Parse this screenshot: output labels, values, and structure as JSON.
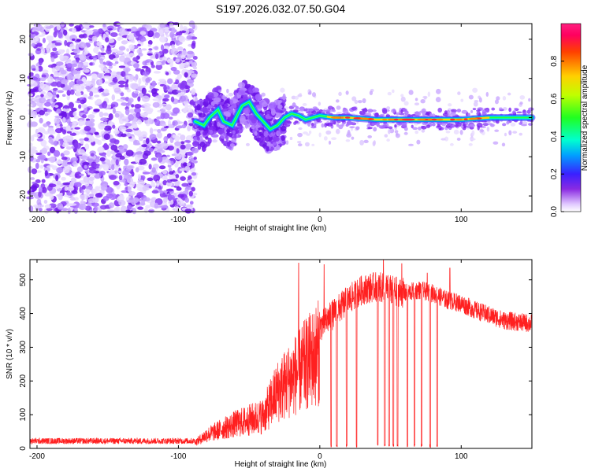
{
  "title": "S197.2026.032.07.50.G04",
  "chart_data": [
    {
      "type": "heatmap",
      "xlabel": "Height of straight line (km)",
      "ylabel": "Frequency (Hz)",
      "xlim": [
        -205,
        150
      ],
      "ylim": [
        -24,
        24
      ],
      "xticks": [
        -200,
        -100,
        0,
        100
      ],
      "yticks": [
        -20,
        -10,
        0,
        10,
        20
      ],
      "colorbar": {
        "label": "Normalized spectral amplitude",
        "range": [
          0,
          1
        ],
        "ticks": [
          "0.0",
          "0.2",
          "0.4",
          "0.6",
          "0.8"
        ],
        "tick_values": [
          0.0,
          0.2,
          0.4,
          0.6,
          0.8
        ]
      },
      "regions": [
        {
          "x_range": [
            -205,
            -88
          ],
          "description": "broadband noise",
          "amplitude": 0.05
        },
        {
          "x_range": [
            -88,
            -25
          ],
          "description": "scattered signal near 0 Hz",
          "amplitude": 0.2
        },
        {
          "x_range": [
            -25,
            150
          ],
          "description": "steady carrier at about 0 Hz",
          "amplitude": 0.9
        }
      ],
      "trace": [
        [
          -88,
          -1
        ],
        [
          -82,
          -2
        ],
        [
          -78,
          0
        ],
        [
          -72,
          2
        ],
        [
          -68,
          -1
        ],
        [
          -62,
          -2
        ],
        [
          -55,
          3
        ],
        [
          -50,
          4
        ],
        [
          -45,
          1
        ],
        [
          -40,
          -1
        ],
        [
          -35,
          -3
        ],
        [
          -30,
          -2
        ],
        [
          -25,
          0
        ],
        [
          -20,
          1
        ],
        [
          -15,
          0.5
        ],
        [
          -10,
          -0.5
        ],
        [
          -5,
          0
        ],
        [
          0,
          0.5
        ],
        [
          10,
          0
        ],
        [
          20,
          0
        ],
        [
          40,
          -0.5
        ],
        [
          60,
          -0.5
        ],
        [
          80,
          -0.5
        ],
        [
          100,
          -0.5
        ],
        [
          120,
          0
        ],
        [
          150,
          0
        ]
      ]
    },
    {
      "type": "line",
      "xlabel": "Height of straight line (km)",
      "ylabel": "SNR (10 * v/v)",
      "xlim": [
        -205,
        150
      ],
      "ylim": [
        0,
        560
      ],
      "xticks": [
        -200,
        -100,
        0,
        100
      ],
      "yticks": [
        0,
        100,
        200,
        300,
        400,
        500
      ],
      "series": [
        {
          "color": "#ff2020",
          "envelope": [
            [
              -205,
              22
            ],
            [
              -140,
              22
            ],
            [
              -88,
              22
            ],
            [
              -80,
              50
            ],
            [
              -60,
              90
            ],
            [
              -40,
              120
            ],
            [
              -30,
              210
            ],
            [
              -20,
              260
            ],
            [
              -10,
              310
            ],
            [
              0,
              360
            ],
            [
              10,
              400
            ],
            [
              20,
              440
            ],
            [
              30,
              470
            ],
            [
              40,
              480
            ],
            [
              50,
              470
            ],
            [
              60,
              460
            ],
            [
              70,
              470
            ],
            [
              80,
              460
            ],
            [
              90,
              440
            ],
            [
              100,
              430
            ],
            [
              110,
              410
            ],
            [
              120,
              395
            ],
            [
              130,
              380
            ],
            [
              140,
              375
            ],
            [
              150,
              370
            ]
          ],
          "dropouts": [
            8,
            12,
            19,
            26,
            41,
            46,
            49,
            52,
            55,
            62,
            67,
            72,
            78,
            83
          ],
          "spikes": [
            [
              -15,
              550
            ],
            [
              3,
              545
            ],
            [
              45,
              560
            ],
            [
              58,
              548
            ],
            [
              76,
              520
            ],
            [
              92,
              535
            ]
          ]
        }
      ]
    }
  ]
}
